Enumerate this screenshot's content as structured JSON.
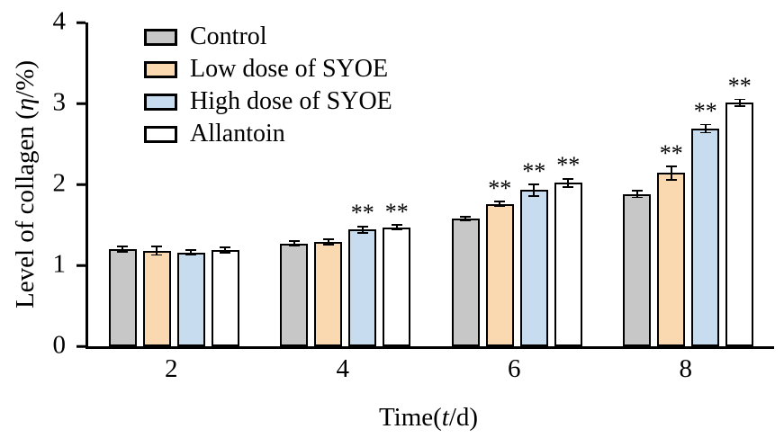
{
  "chart_data": {
    "type": "bar",
    "title": "",
    "xlabel_prefix": "Time(",
    "xlabel_italic": "t",
    "xlabel_suffix": "/d)",
    "ylabel_prefix": "Level of collagen (",
    "ylabel_italic": "η",
    "ylabel_suffix": "/%)",
    "categories": [
      "2",
      "4",
      "6",
      "8"
    ],
    "y_ticks": [
      0,
      1,
      2,
      3,
      4
    ],
    "ylim": [
      0,
      4
    ],
    "grid": false,
    "legend_position": "top-left",
    "significance_symbol": "**",
    "series": [
      {
        "name": "Control",
        "color": "#c7c7c7",
        "values": [
          1.2,
          1.27,
          1.58,
          1.88
        ],
        "errors": [
          0.04,
          0.04,
          0.03,
          0.05
        ],
        "sig": [
          "",
          "",
          "",
          ""
        ]
      },
      {
        "name": "Low dose of SYOE",
        "color": "#fbd9b0",
        "values": [
          1.18,
          1.29,
          1.76,
          2.14
        ],
        "errors": [
          0.06,
          0.04,
          0.04,
          0.09
        ],
        "sig": [
          "",
          "",
          "**",
          "**"
        ]
      },
      {
        "name": "High dose of SYOE",
        "color": "#c8dcf0",
        "values": [
          1.16,
          1.44,
          1.93,
          2.69
        ],
        "errors": [
          0.04,
          0.05,
          0.08,
          0.06
        ],
        "sig": [
          "",
          "**",
          "**",
          "**"
        ]
      },
      {
        "name": "Allantoin",
        "color": "#ffffff",
        "values": [
          1.19,
          1.47,
          2.02,
          3.01
        ],
        "errors": [
          0.04,
          0.04,
          0.06,
          0.05
        ],
        "sig": [
          "",
          "**",
          "**",
          "**"
        ]
      }
    ]
  }
}
